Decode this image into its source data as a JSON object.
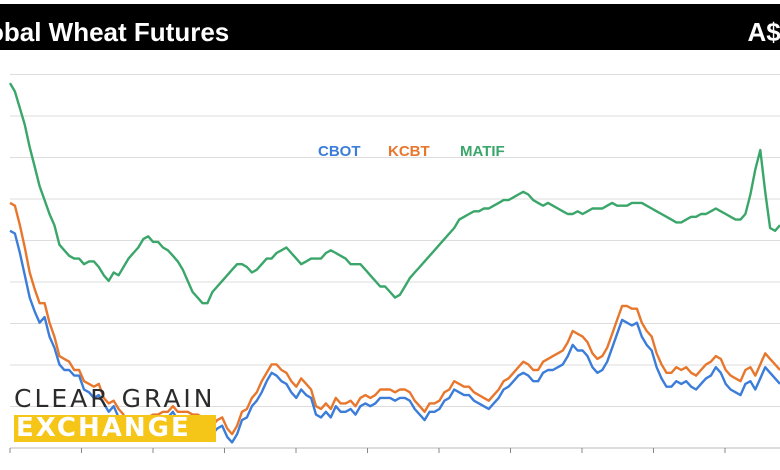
{
  "header": {
    "title": "obal Wheat Futures",
    "unit": "A$/"
  },
  "logo": {
    "line1": "CLEAR GRAIN",
    "line2": "EXCHANGE"
  },
  "colors": {
    "CBOT": "#3b7dd8",
    "KCBT": "#e8772e",
    "MATIF": "#3aa66a",
    "grid": "#dddddd",
    "title_bar": "#000000",
    "logo_accent": "#f5c518"
  },
  "chart_data": {
    "type": "line",
    "title": "obal Wheat Futures",
    "ylabel": "A$/",
    "xlabel": "",
    "grid": true,
    "legend_position": "top-center",
    "x": [
      0,
      1,
      2,
      3,
      4,
      5,
      6,
      7,
      8,
      9,
      10,
      11,
      12,
      13,
      14,
      15,
      16,
      17,
      18,
      19,
      20,
      21,
      22,
      23,
      24,
      25,
      26,
      27,
      28,
      29,
      30,
      31,
      32,
      33,
      34,
      35,
      36,
      37,
      38,
      39,
      40,
      41,
      42,
      43,
      44,
      45,
      46,
      47,
      48,
      49,
      50,
      51,
      52,
      53,
      54,
      55,
      56,
      57,
      58,
      59,
      60,
      61,
      62,
      63,
      64,
      65,
      66,
      67,
      68,
      69,
      70,
      71,
      72,
      73,
      74,
      75,
      76,
      77,
      78,
      79,
      80,
      81,
      82,
      83,
      84,
      85,
      86,
      87,
      88,
      89,
      90,
      91,
      92,
      93,
      94,
      95,
      96,
      97,
      98,
      99,
      100,
      101,
      102,
      103,
      104,
      105,
      106,
      107,
      108,
      109,
      110,
      111,
      112,
      113,
      114,
      115,
      116,
      117,
      118,
      119,
      120,
      121,
      122,
      123,
      124,
      125,
      126,
      127,
      128,
      129,
      130,
      131,
      132,
      133,
      134,
      135,
      136,
      137,
      138,
      139,
      140,
      141,
      142,
      143,
      144,
      145,
      146,
      147,
      148,
      149,
      150,
      151,
      152,
      153,
      154,
      155,
      156
    ],
    "series": [
      {
        "name": "CBOT",
        "values": [
          78,
          77,
          70,
          62,
          54,
          49,
          45,
          47,
          40,
          36,
          30,
          28,
          28,
          26,
          26,
          21,
          20,
          18,
          19,
          16,
          13,
          15,
          11,
          9,
          3,
          5,
          7,
          6,
          9,
          10,
          10,
          11,
          11,
          13,
          10,
          11,
          11,
          10,
          10,
          8,
          7,
          5,
          7,
          8,
          4,
          2,
          5,
          10,
          11,
          15,
          17,
          20,
          24,
          27,
          26,
          24,
          23,
          20,
          18,
          21,
          19,
          18,
          12,
          11,
          13,
          11,
          15,
          13,
          13,
          14,
          12,
          15,
          16,
          15,
          16,
          18,
          18,
          18,
          17,
          18,
          18,
          17,
          14,
          12,
          10,
          13,
          13,
          14,
          17,
          18,
          21,
          20,
          19,
          19,
          17,
          16,
          15,
          14,
          16,
          18,
          21,
          22,
          24,
          26,
          27,
          26,
          24,
          24,
          27,
          28,
          28,
          29,
          30,
          33,
          37,
          35,
          35,
          33,
          29,
          27,
          28,
          31,
          36,
          41,
          46,
          45,
          44,
          45,
          40,
          37,
          35,
          29,
          25,
          22,
          22,
          24,
          23,
          24,
          22,
          21,
          23,
          25,
          26,
          29,
          27,
          23,
          21,
          20,
          19,
          23,
          24,
          21,
          25,
          29,
          27,
          25,
          23
        ]
      },
      {
        "name": "KCBT",
        "values": [
          88,
          87,
          80,
          72,
          63,
          57,
          52,
          52,
          45,
          40,
          33,
          32,
          31,
          28,
          28,
          24,
          23,
          22,
          23,
          18,
          16,
          17,
          14,
          12,
          5,
          6,
          8,
          8,
          11,
          12,
          12,
          13,
          13,
          15,
          13,
          13,
          13,
          12,
          12,
          11,
          10,
          8,
          10,
          11,
          7,
          5,
          8,
          13,
          14,
          18,
          20,
          24,
          27,
          30,
          30,
          28,
          27,
          24,
          22,
          25,
          23,
          21,
          15,
          14,
          16,
          14,
          18,
          16,
          16,
          17,
          15,
          18,
          19,
          18,
          19,
          21,
          21,
          21,
          20,
          21,
          21,
          20,
          17,
          15,
          13,
          16,
          16,
          17,
          20,
          21,
          24,
          23,
          22,
          22,
          20,
          19,
          18,
          17,
          19,
          21,
          24,
          25,
          27,
          29,
          31,
          30,
          28,
          28,
          31,
          32,
          33,
          34,
          35,
          38,
          42,
          41,
          40,
          38,
          34,
          32,
          33,
          36,
          41,
          46,
          51,
          51,
          50,
          50,
          45,
          42,
          40,
          34,
          30,
          27,
          27,
          29,
          28,
          29,
          27,
          26,
          28,
          30,
          31,
          33,
          32,
          28,
          26,
          25,
          24,
          28,
          29,
          26,
          30,
          34,
          32,
          30,
          28
        ]
      },
      {
        "name": "MATIF",
        "values": [
          131,
          128,
          122,
          116,
          108,
          101,
          94,
          89,
          84,
          80,
          73,
          71,
          69,
          68,
          68,
          66,
          67,
          67,
          65,
          62,
          60,
          63,
          62,
          65,
          68,
          70,
          72,
          75,
          76,
          74,
          74,
          72,
          71,
          69,
          67,
          64,
          60,
          56,
          54,
          52,
          52,
          56,
          58,
          60,
          62,
          64,
          66,
          66,
          65,
          63,
          64,
          66,
          68,
          68,
          70,
          71,
          72,
          70,
          68,
          66,
          67,
          68,
          68,
          68,
          70,
          71,
          70,
          69,
          68,
          66,
          66,
          66,
          64,
          62,
          60,
          58,
          58,
          56,
          54,
          55,
          58,
          61,
          63,
          65,
          67,
          69,
          71,
          73,
          75,
          77,
          79,
          82,
          83,
          84,
          85,
          85,
          86,
          86,
          87,
          88,
          89,
          89,
          90,
          91,
          92,
          91,
          89,
          88,
          87,
          88,
          87,
          86,
          85,
          84,
          84,
          85,
          84,
          85,
          86,
          86,
          86,
          87,
          88,
          87,
          87,
          87,
          88,
          88,
          88,
          87,
          86,
          85,
          84,
          83,
          82,
          81,
          81,
          82,
          83,
          83,
          84,
          84,
          85,
          86,
          85,
          84,
          83,
          82,
          82,
          84,
          91,
          100,
          107,
          92,
          79,
          78,
          80
        ]
      }
    ]
  }
}
